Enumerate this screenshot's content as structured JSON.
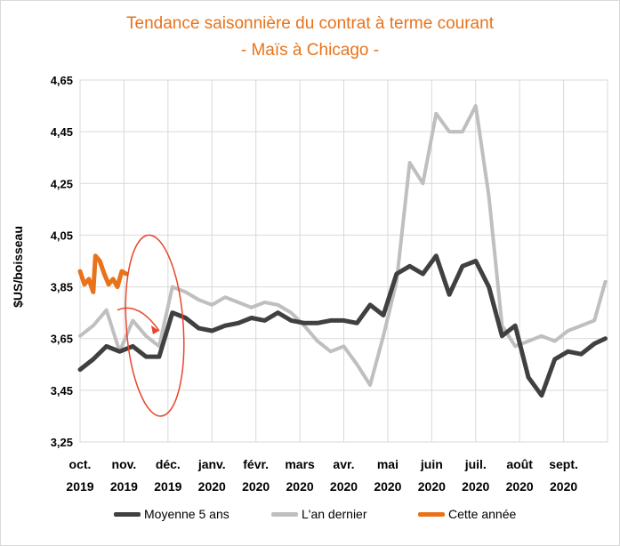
{
  "chart_data": {
    "type": "line",
    "title": "Tendance saisonnière du contrat à terme courant",
    "subtitle": "- Maïs à Chicago -",
    "ylabel": "$US/boisseau",
    "xlabel": "",
    "ylim": [
      3.25,
      4.65
    ],
    "yticks": [
      "4,65",
      "4,45",
      "4,25",
      "4,05",
      "3,85",
      "3,65",
      "3,45",
      "3,25"
    ],
    "ytick_values": [
      4.65,
      4.45,
      4.25,
      4.05,
      3.85,
      3.65,
      3.45,
      3.25
    ],
    "x_axis": "weeks from oct. 2019 to end of sept. 2020",
    "xticks": [
      {
        "top": "oct.",
        "bottom": "2019"
      },
      {
        "top": "nov.",
        "bottom": "2019"
      },
      {
        "top": "déc.",
        "bottom": "2019"
      },
      {
        "top": "janv.",
        "bottom": "2020"
      },
      {
        "top": "févr.",
        "bottom": "2020"
      },
      {
        "top": "mars",
        "bottom": "2020"
      },
      {
        "top": "avr.",
        "bottom": "2020"
      },
      {
        "top": "mai",
        "bottom": "2020"
      },
      {
        "top": "juin",
        "bottom": "2020"
      },
      {
        "top": "juil.",
        "bottom": "2020"
      },
      {
        "top": "août",
        "bottom": "2020"
      },
      {
        "top": "sept.",
        "bottom": "2020"
      }
    ],
    "grid": true,
    "legend": "bottom",
    "series": [
      {
        "name": "Moyenne 5 ans",
        "color": "#404040",
        "x": [
          0,
          0.3,
          0.6,
          0.9,
          1.2,
          1.5,
          1.8,
          2.1,
          2.4,
          2.7,
          3.0,
          3.3,
          3.6,
          3.9,
          4.2,
          4.5,
          4.8,
          5.1,
          5.4,
          5.7,
          6.0,
          6.3,
          6.6,
          6.9,
          7.2,
          7.5,
          7.8,
          8.1,
          8.4,
          8.7,
          9.0,
          9.3,
          9.6,
          9.9,
          10.2,
          10.5,
          10.8,
          11.1,
          11.4,
          11.7,
          11.95
        ],
        "values": [
          3.53,
          3.57,
          3.62,
          3.6,
          3.62,
          3.58,
          3.58,
          3.75,
          3.73,
          3.69,
          3.68,
          3.7,
          3.71,
          3.73,
          3.72,
          3.75,
          3.72,
          3.71,
          3.71,
          3.72,
          3.72,
          3.71,
          3.78,
          3.74,
          3.9,
          3.93,
          3.9,
          3.97,
          3.82,
          3.93,
          3.95,
          3.85,
          3.66,
          3.7,
          3.5,
          3.43,
          3.57,
          3.6,
          3.59,
          3.63,
          3.65
        ]
      },
      {
        "name": "L'an dernier",
        "color": "#bfbfbf",
        "x": [
          0,
          0.3,
          0.6,
          0.9,
          1.2,
          1.5,
          1.8,
          2.1,
          2.4,
          2.7,
          3.0,
          3.3,
          3.6,
          3.9,
          4.2,
          4.5,
          4.8,
          5.1,
          5.4,
          5.7,
          6.0,
          6.3,
          6.6,
          6.9,
          7.2,
          7.5,
          7.8,
          8.1,
          8.4,
          8.7,
          9.0,
          9.3,
          9.6,
          9.9,
          10.2,
          10.5,
          10.8,
          11.1,
          11.4,
          11.7,
          11.95
        ],
        "values": [
          3.66,
          3.7,
          3.76,
          3.6,
          3.72,
          3.66,
          3.62,
          3.85,
          3.83,
          3.8,
          3.78,
          3.81,
          3.79,
          3.77,
          3.79,
          3.78,
          3.75,
          3.7,
          3.64,
          3.6,
          3.62,
          3.55,
          3.47,
          3.66,
          3.87,
          4.33,
          4.25,
          4.52,
          4.45,
          4.45,
          4.55,
          4.2,
          3.7,
          3.62,
          3.64,
          3.66,
          3.64,
          3.68,
          3.7,
          3.72,
          3.87
        ]
      },
      {
        "name": "Cette année",
        "color": "#e8731a",
        "x": [
          0,
          0.1,
          0.2,
          0.3,
          0.35,
          0.45,
          0.55,
          0.65,
          0.75,
          0.85,
          0.95,
          1.05
        ],
        "values": [
          3.91,
          3.86,
          3.88,
          3.83,
          3.97,
          3.95,
          3.9,
          3.86,
          3.88,
          3.85,
          3.91,
          3.9
        ]
      }
    ],
    "annotations": [
      {
        "type": "ellipse",
        "color": "#e8452a",
        "note": "highlight nov. 2019 – déc. 2019"
      },
      {
        "type": "arrow",
        "color": "#e8452a"
      }
    ]
  }
}
